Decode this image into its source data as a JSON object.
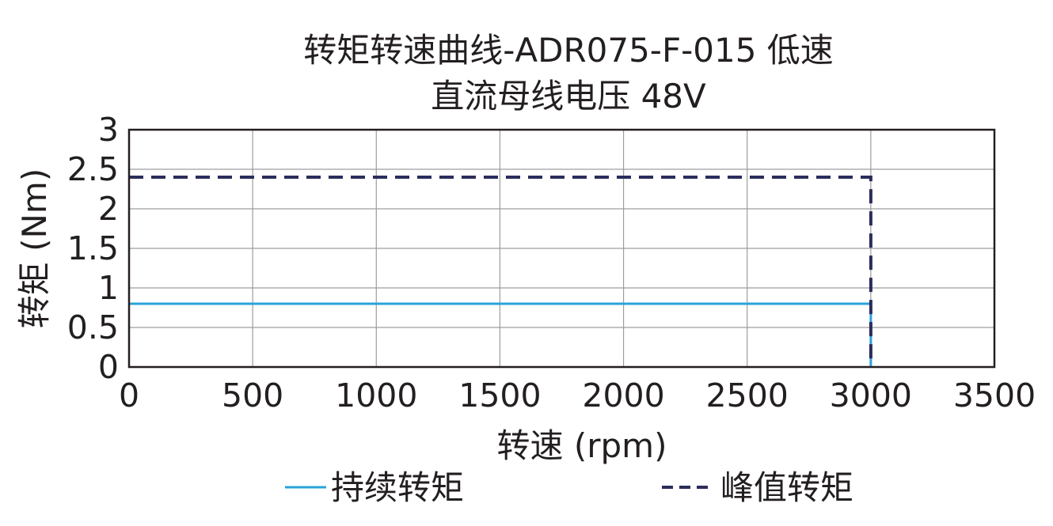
{
  "chart_data": {
    "type": "line",
    "title": "转矩转速曲线-ADR075-F-015 低速",
    "subtitle": "直流母线电压 48V",
    "xlabel": "转速 (rpm)",
    "ylabel": "转矩 (Nm)",
    "xlim": [
      0,
      3500
    ],
    "ylim": [
      0,
      3
    ],
    "x_ticks": [
      0,
      500,
      1000,
      1500,
      2000,
      2500,
      3000,
      3500
    ],
    "x_tick_labels": [
      "0",
      "500",
      "1000",
      "1500",
      "2000",
      "2500",
      "3000",
      "3500"
    ],
    "y_ticks": [
      0,
      0.5,
      1,
      1.5,
      2,
      2.5,
      3
    ],
    "y_tick_labels": [
      "0",
      "0.5",
      "1",
      "1.5",
      "2",
      "2.5",
      "3"
    ],
    "grid": true,
    "legend_position": "bottom",
    "series": [
      {
        "name": "持续转矩",
        "style": "solid",
        "color": "#29a3d8",
        "x": [
          0,
          3000,
          3000
        ],
        "y": [
          0.8,
          0.8,
          0
        ]
      },
      {
        "name": "峰值转矩",
        "style": "dashed",
        "color": "#2b2d5c",
        "x": [
          0,
          3000,
          3000
        ],
        "y": [
          2.4,
          2.4,
          0
        ]
      }
    ]
  }
}
